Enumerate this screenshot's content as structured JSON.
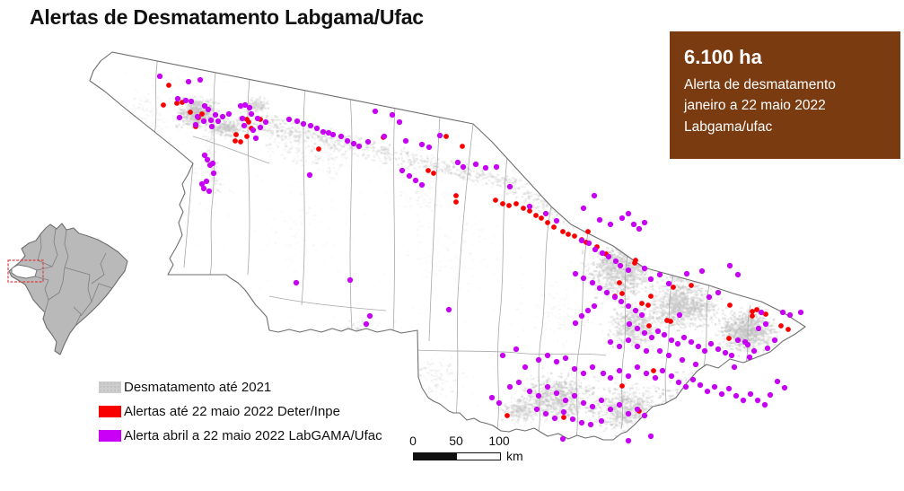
{
  "title": "Alertas de Desmatamento Labgama/Ufac",
  "info_box": {
    "headline": "6.100 ha",
    "line1": "Alerta de desmatamento",
    "line2": "janeiro a 22 maio 2022",
    "line3": "Labgama/ufac",
    "bg_color": "#7B3B10",
    "text_color": "#FFFFFF"
  },
  "legend": {
    "items": [
      {
        "label": "Desmatamento até 2021",
        "color": "#CDCDCD",
        "style": "pattern"
      },
      {
        "label": "Alertas até 22 maio 2022 Deter/Inpe",
        "color": "#F80000",
        "style": "solid"
      },
      {
        "label": "Alerta abril a 22 maio 2022 LabGAMA/Ufac",
        "color": "#C800F5",
        "style": "solid"
      }
    ]
  },
  "scale_bar": {
    "ticks": [
      "0",
      "50",
      "100"
    ],
    "unit": "km"
  },
  "inset": {
    "country": "Brazil",
    "highlight_state": "Acre",
    "box_color": "#E04040",
    "fill_color": "#B9B9B9",
    "border_color": "#6E6E6E"
  },
  "map_data": {
    "type": "point-map",
    "region": "Acre state, Brazil",
    "colors": {
      "deter_alerts": "#F80000",
      "labgama_alerts": "#C800F5",
      "deforestation": "#C6C6C6",
      "state_border": "#6E6E6E",
      "municipal_border": "#A8A8A8"
    },
    "alerts_deter_inpe": [
      [
        188,
        95
      ],
      [
        182,
        117
      ],
      [
        197,
        115
      ],
      [
        203,
        114
      ],
      [
        212,
        125
      ],
      [
        221,
        131
      ],
      [
        218,
        141
      ],
      [
        225,
        127
      ],
      [
        275,
        133
      ],
      [
        277,
        136
      ],
      [
        280,
        143
      ],
      [
        275,
        152
      ],
      [
        263,
        150
      ],
      [
        268,
        158
      ],
      [
        262,
        157
      ],
      [
        290,
        133
      ],
      [
        427,
        153
      ],
      [
        497,
        152
      ],
      [
        515,
        163
      ],
      [
        477,
        190
      ],
      [
        483,
        193
      ],
      [
        508,
        218
      ],
      [
        508,
        225
      ],
      [
        355,
        166
      ],
      [
        552,
        223
      ],
      [
        560,
        227
      ],
      [
        567,
        229
      ],
      [
        575,
        227
      ],
      [
        583,
        232
      ],
      [
        590,
        235
      ],
      [
        597,
        240
      ],
      [
        603,
        243
      ],
      [
        610,
        248
      ],
      [
        617,
        253
      ],
      [
        627,
        258
      ],
      [
        633,
        261
      ],
      [
        640,
        263
      ],
      [
        648,
        267
      ],
      [
        653,
        270
      ],
      [
        655,
        258
      ],
      [
        665,
        275
      ],
      [
        675,
        283
      ],
      [
        690,
        315
      ],
      [
        693,
        327
      ],
      [
        685,
        330
      ],
      [
        715,
        338
      ],
      [
        722,
        340
      ],
      [
        743,
        357
      ],
      [
        747,
        358
      ],
      [
        723,
        363
      ],
      [
        708,
        290
      ],
      [
        707,
        293
      ],
      [
        838,
        347
      ],
      [
        853,
        350
      ],
      [
        843,
        345
      ],
      [
        870,
        363
      ],
      [
        878,
        367
      ],
      [
        838,
        352
      ],
      [
        813,
        340
      ],
      [
        812,
        377
      ],
      [
        750,
        320
      ],
      [
        770,
        318
      ],
      [
        725,
        330
      ],
      [
        728,
        413
      ],
      [
        693,
        430
      ],
      [
        712,
        458
      ],
      [
        628,
        465
      ],
      [
        565,
        463
      ]
    ],
    "alerts_labgama": [
      [
        178,
        85
      ],
      [
        210,
        91
      ],
      [
        223,
        89
      ],
      [
        198,
        110
      ],
      [
        207,
        112
      ],
      [
        213,
        113
      ],
      [
        228,
        118
      ],
      [
        232,
        122
      ],
      [
        220,
        130
      ],
      [
        227,
        135
      ],
      [
        200,
        131
      ],
      [
        235,
        134
      ],
      [
        243,
        135
      ],
      [
        218,
        139
      ],
      [
        248,
        130
      ],
      [
        255,
        127
      ],
      [
        240,
        128
      ],
      [
        236,
        141
      ],
      [
        268,
        118
      ],
      [
        273,
        117
      ],
      [
        278,
        120
      ],
      [
        280,
        127
      ],
      [
        270,
        132
      ],
      [
        272,
        140
      ],
      [
        282,
        145
      ],
      [
        287,
        132
      ],
      [
        285,
        154
      ],
      [
        290,
        142
      ],
      [
        296,
        136
      ],
      [
        322,
        133
      ],
      [
        331,
        135
      ],
      [
        338,
        138
      ],
      [
        346,
        140
      ],
      [
        353,
        143
      ],
      [
        360,
        147
      ],
      [
        366,
        148
      ],
      [
        371,
        150
      ],
      [
        380,
        152
      ],
      [
        387,
        157
      ],
      [
        394,
        160
      ],
      [
        400,
        163
      ],
      [
        410,
        158
      ],
      [
        428,
        152
      ],
      [
        437,
        128
      ],
      [
        418,
        124
      ],
      [
        445,
        136
      ],
      [
        452,
        157
      ],
      [
        470,
        161
      ],
      [
        478,
        164
      ],
      [
        490,
        151
      ],
      [
        510,
        181
      ],
      [
        516,
        186
      ],
      [
        530,
        183
      ],
      [
        541,
        187
      ],
      [
        553,
        186
      ],
      [
        448,
        190
      ],
      [
        456,
        196
      ],
      [
        463,
        201
      ],
      [
        470,
        206
      ],
      [
        345,
        195
      ],
      [
        228,
        173
      ],
      [
        231,
        178
      ],
      [
        237,
        182
      ],
      [
        234,
        184
      ],
      [
        238,
        193
      ],
      [
        230,
        202
      ],
      [
        225,
        205
      ],
      [
        227,
        210
      ],
      [
        233,
        213
      ],
      [
        330,
        315
      ],
      [
        390,
        312
      ],
      [
        412,
        352
      ],
      [
        408,
        361
      ],
      [
        500,
        345
      ],
      [
        568,
        208
      ],
      [
        590,
        230
      ],
      [
        608,
        238
      ],
      [
        620,
        246
      ],
      [
        650,
        232
      ],
      [
        662,
        218
      ],
      [
        668,
        245
      ],
      [
        680,
        250
      ],
      [
        693,
        243
      ],
      [
        700,
        238
      ],
      [
        706,
        250
      ],
      [
        712,
        255
      ],
      [
        718,
        248
      ],
      [
        648,
        268
      ],
      [
        656,
        271
      ],
      [
        663,
        278
      ],
      [
        671,
        282
      ],
      [
        678,
        286
      ],
      [
        686,
        291
      ],
      [
        691,
        296
      ],
      [
        700,
        301
      ],
      [
        641,
        305
      ],
      [
        650,
        310
      ],
      [
        660,
        315
      ],
      [
        668,
        321
      ],
      [
        676,
        326
      ],
      [
        685,
        331
      ],
      [
        692,
        336
      ],
      [
        700,
        341
      ],
      [
        708,
        346
      ],
      [
        715,
        351
      ],
      [
        662,
        341
      ],
      [
        655,
        346
      ],
      [
        648,
        352
      ],
      [
        641,
        360
      ],
      [
        701,
        361
      ],
      [
        710,
        366
      ],
      [
        718,
        371
      ],
      [
        726,
        376
      ],
      [
        733,
        369
      ],
      [
        740,
        373
      ],
      [
        748,
        379
      ],
      [
        755,
        383
      ],
      [
        762,
        376
      ],
      [
        770,
        381
      ],
      [
        778,
        386
      ],
      [
        785,
        391
      ],
      [
        792,
        383
      ],
      [
        800,
        389
      ],
      [
        808,
        393
      ],
      [
        815,
        396
      ],
      [
        822,
        379
      ],
      [
        830,
        381
      ],
      [
        833,
        384
      ],
      [
        840,
        391
      ],
      [
        848,
        348
      ],
      [
        853,
        361
      ],
      [
        845,
        366
      ],
      [
        855,
        388
      ],
      [
        863,
        379
      ],
      [
        872,
        348
      ],
      [
        880,
        351
      ],
      [
        892,
        348
      ],
      [
        835,
        398
      ],
      [
        818,
        409
      ],
      [
        757,
        351
      ],
      [
        725,
        311
      ],
      [
        735,
        306
      ],
      [
        745,
        316
      ],
      [
        718,
        299
      ],
      [
        813,
        296
      ],
      [
        822,
        306
      ],
      [
        790,
        331
      ],
      [
        800,
        326
      ],
      [
        782,
        302
      ],
      [
        765,
        305
      ],
      [
        568,
        431
      ],
      [
        578,
        426
      ],
      [
        590,
        436
      ],
      [
        600,
        441
      ],
      [
        610,
        431
      ],
      [
        620,
        438
      ],
      [
        630,
        446
      ],
      [
        640,
        441
      ],
      [
        650,
        449
      ],
      [
        660,
        453
      ],
      [
        670,
        446
      ],
      [
        680,
        456
      ],
      [
        690,
        451
      ],
      [
        700,
        461
      ],
      [
        710,
        456
      ],
      [
        718,
        463
      ],
      [
        598,
        456
      ],
      [
        608,
        461
      ],
      [
        618,
        466
      ],
      [
        628,
        459
      ],
      [
        638,
        467
      ],
      [
        648,
        471
      ],
      [
        658,
        473
      ],
      [
        670,
        469
      ],
      [
        548,
        443
      ],
      [
        556,
        449
      ],
      [
        640,
        411
      ],
      [
        650,
        416
      ],
      [
        660,
        409
      ],
      [
        672,
        416
      ],
      [
        680,
        421
      ],
      [
        690,
        413
      ],
      [
        700,
        419
      ],
      [
        710,
        409
      ],
      [
        720,
        416
      ],
      [
        730,
        421
      ],
      [
        738,
        413
      ],
      [
        748,
        419
      ],
      [
        756,
        426
      ],
      [
        764,
        431
      ],
      [
        772,
        423
      ],
      [
        780,
        429
      ],
      [
        788,
        436
      ],
      [
        796,
        431
      ],
      [
        804,
        439
      ],
      [
        812,
        433
      ],
      [
        820,
        441
      ],
      [
        828,
        446
      ],
      [
        836,
        439
      ],
      [
        844,
        446
      ],
      [
        852,
        451
      ],
      [
        735,
        391
      ],
      [
        745,
        396
      ],
      [
        760,
        401
      ],
      [
        775,
        406
      ],
      [
        680,
        381
      ],
      [
        690,
        386
      ],
      [
        700,
        379
      ],
      [
        710,
        386
      ],
      [
        720,
        391
      ],
      [
        600,
        401
      ],
      [
        610,
        396
      ],
      [
        620,
        403
      ],
      [
        630,
        399
      ],
      [
        575,
        389
      ],
      [
        560,
        396
      ],
      [
        585,
        409
      ],
      [
        627,
        489
      ],
      [
        700,
        491
      ],
      [
        725,
        486
      ],
      [
        866,
        425
      ],
      [
        874,
        432
      ],
      [
        858,
        440
      ]
    ]
  }
}
